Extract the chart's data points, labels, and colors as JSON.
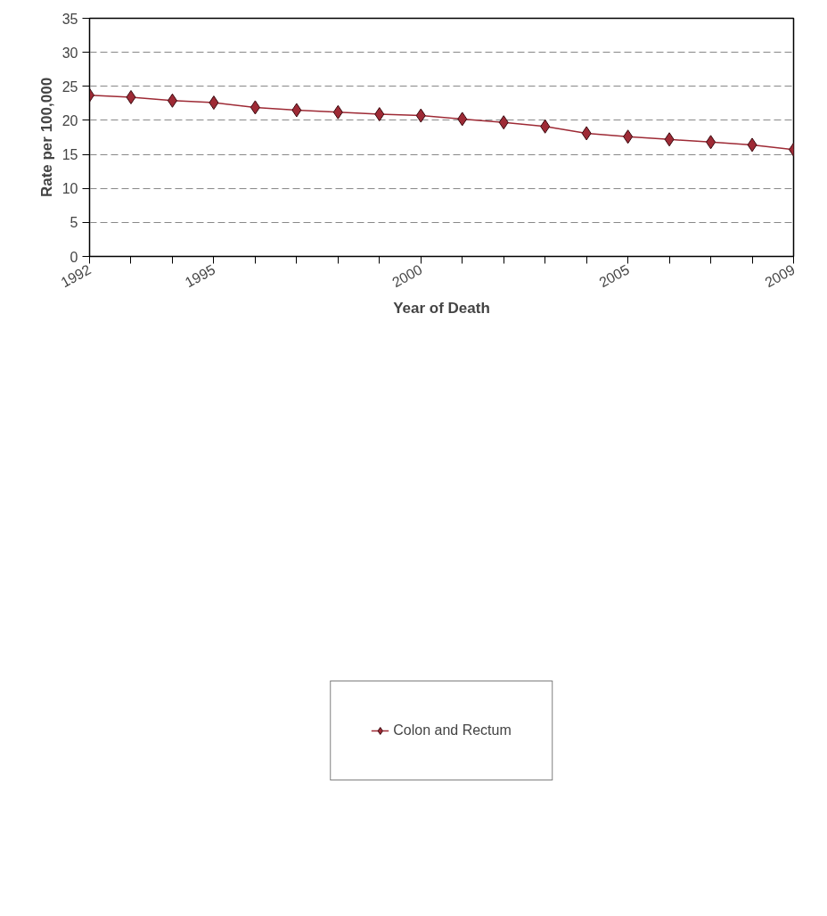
{
  "chart_data": {
    "type": "line",
    "xlabel": "Year of Death",
    "ylabel": "Rate per 100,000",
    "x": [
      1992,
      1993,
      1994,
      1995,
      1996,
      1997,
      1998,
      1999,
      2000,
      2001,
      2002,
      2003,
      2004,
      2005,
      2006,
      2007,
      2008,
      2009
    ],
    "series": [
      {
        "name": "Colon and Rectum",
        "color": "#9e2a35",
        "values": [
          23.7,
          23.4,
          22.9,
          22.6,
          21.9,
          21.5,
          21.2,
          20.9,
          20.7,
          20.2,
          19.7,
          19.1,
          18.1,
          17.6,
          17.2,
          16.8,
          16.4,
          15.7
        ]
      }
    ],
    "xlim": [
      1992,
      2009
    ],
    "xticks": [
      1992,
      {
        "value": 1993,
        "label": null
      },
      {
        "value": 1994,
        "label": null
      },
      1995,
      {
        "value": 1996,
        "label": null
      },
      {
        "value": 1997,
        "label": null
      },
      {
        "value": 1998,
        "label": null
      },
      {
        "value": 1999,
        "label": null
      },
      2000,
      {
        "value": 2001,
        "label": null
      },
      {
        "value": 2002,
        "label": null
      },
      {
        "value": 2003,
        "label": null
      },
      {
        "value": 2004,
        "label": null
      },
      2005,
      {
        "value": 2006,
        "label": null
      },
      {
        "value": 2007,
        "label": null
      },
      {
        "value": 2008,
        "label": null
      },
      2009
    ],
    "ylim": [
      0,
      35
    ],
    "yticks": [
      0,
      5,
      10,
      15,
      20,
      25,
      30,
      35
    ],
    "grid": "y",
    "legend": "bottom",
    "marker": "diamond",
    "line_style": "solid"
  }
}
